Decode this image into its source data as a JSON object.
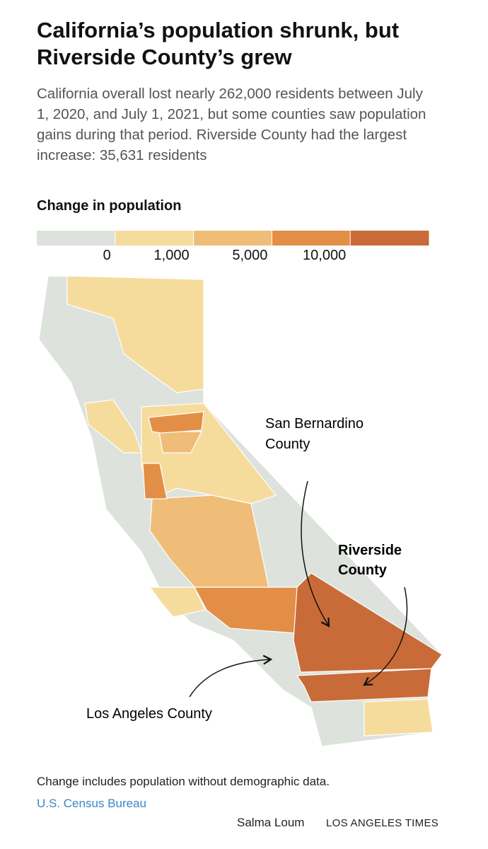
{
  "header": {
    "title": "California’s population shrunk, but Riverside County’s grew",
    "subtitle": "California overall lost nearly 262,000 residents between July 1, 2020, and July 1, 2021, but some counties saw population gains during that period. Riverside County had the largest increase: 35,631 residents"
  },
  "legend": {
    "title": "Change in population",
    "labels": [
      "0",
      "1,000",
      "5,000",
      "10,000"
    ],
    "colors": [
      "#dde2dd",
      "#f6dc9c",
      "#f0bd78",
      "#e38e46",
      "#c96b38"
    ]
  },
  "annotations": {
    "san_bernardino": [
      "San Bernardino",
      "County"
    ],
    "riverside": [
      "Riverside",
      "County"
    ],
    "los_angeles": "Los Angeles County"
  },
  "footer": {
    "note": "Change includes population without demographic data.",
    "source": "U.S. Census Bureau",
    "credit": "Salma Loum",
    "publisher": "LOS ANGELES TIMES"
  }
}
